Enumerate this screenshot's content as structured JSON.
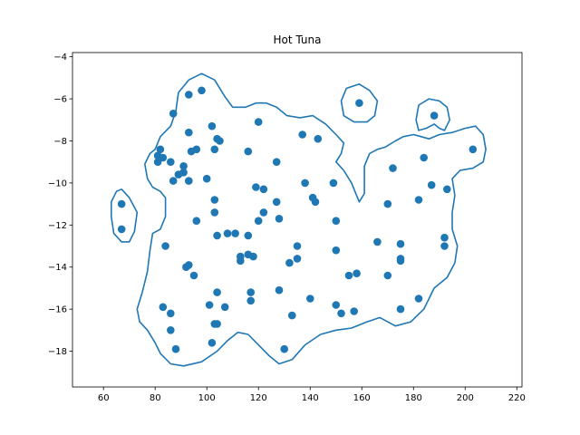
{
  "chart_data": {
    "type": "scatter",
    "title": "Hot Tuna",
    "xlabel": "",
    "ylabel": "",
    "xlim": [
      48,
      222
    ],
    "ylim": [
      -19.7,
      -3.8
    ],
    "grid": false,
    "x_ticks": [
      60,
      80,
      100,
      120,
      140,
      160,
      180,
      200,
      220
    ],
    "y_ticks": [
      -4,
      -6,
      -8,
      -10,
      -12,
      -14,
      -16,
      -18
    ],
    "x_tick_labels": [
      "60",
      "80",
      "100",
      "120",
      "140",
      "160",
      "180",
      "200",
      "220"
    ],
    "y_tick_labels": [
      "−4",
      "−6",
      "−8",
      "−10",
      "−12",
      "−14",
      "−16",
      "−18"
    ],
    "marker_color": "#1f77b4",
    "contour_color": "#1f77b4",
    "points": [
      [
        159,
        -6.2
      ],
      [
        98,
        -5.6
      ],
      [
        93,
        -5.8
      ],
      [
        87,
        -6.7
      ],
      [
        102,
        -7.3
      ],
      [
        120,
        -7.1
      ],
      [
        93,
        -7.6
      ],
      [
        104,
        -7.9
      ],
      [
        105,
        -8.0
      ],
      [
        137,
        -7.7
      ],
      [
        143,
        -7.9
      ],
      [
        82,
        -8.4
      ],
      [
        81,
        -8.7
      ],
      [
        83,
        -8.8
      ],
      [
        86,
        -9.0
      ],
      [
        81,
        -9.0
      ],
      [
        94,
        -8.5
      ],
      [
        96,
        -8.4
      ],
      [
        103,
        -8.4
      ],
      [
        116,
        -8.5
      ],
      [
        91,
        -9.2
      ],
      [
        127,
        -9.0
      ],
      [
        91,
        -9.5
      ],
      [
        89,
        -9.6
      ],
      [
        87,
        -9.9
      ],
      [
        93,
        -9.9
      ],
      [
        100,
        -9.8
      ],
      [
        119,
        -10.2
      ],
      [
        122,
        -10.3
      ],
      [
        138,
        -10.0
      ],
      [
        149,
        -10.0
      ],
      [
        103,
        -10.8
      ],
      [
        141,
        -10.7
      ],
      [
        142,
        -10.9
      ],
      [
        127,
        -10.9
      ],
      [
        103,
        -11.4
      ],
      [
        122,
        -11.4
      ],
      [
        120,
        -11.8
      ],
      [
        128,
        -11.7
      ],
      [
        96,
        -11.8
      ],
      [
        150,
        -11.8
      ],
      [
        104,
        -12.5
      ],
      [
        108,
        -12.4
      ],
      [
        111,
        -12.4
      ],
      [
        116,
        -12.5
      ],
      [
        84,
        -13.0
      ],
      [
        135,
        -13.0
      ],
      [
        150,
        -13.2
      ],
      [
        113,
        -13.5
      ],
      [
        113,
        -13.7
      ],
      [
        116,
        -13.4
      ],
      [
        118,
        -13.5
      ],
      [
        135,
        -13.6
      ],
      [
        93,
        -13.9
      ],
      [
        92,
        -14.0
      ],
      [
        132,
        -13.8
      ],
      [
        95,
        -14.4
      ],
      [
        155,
        -14.4
      ],
      [
        158,
        -14.3
      ],
      [
        104,
        -15.2
      ],
      [
        117,
        -15.2
      ],
      [
        128,
        -15.1
      ],
      [
        117,
        -15.6
      ],
      [
        140,
        -15.5
      ],
      [
        83,
        -15.9
      ],
      [
        101,
        -15.8
      ],
      [
        107,
        -15.9
      ],
      [
        150,
        -15.8
      ],
      [
        86,
        -16.2
      ],
      [
        133,
        -16.3
      ],
      [
        152,
        -16.2
      ],
      [
        157,
        -16.1
      ],
      [
        103,
        -16.7
      ],
      [
        104,
        -16.7
      ],
      [
        86,
        -17.0
      ],
      [
        102,
        -17.6
      ],
      [
        88,
        -17.9
      ],
      [
        130,
        -17.9
      ],
      [
        67,
        -11.0
      ],
      [
        67,
        -12.2
      ],
      [
        188,
        -6.8
      ],
      [
        184,
        -8.8
      ],
      [
        172,
        -9.3
      ],
      [
        187,
        -10.1
      ],
      [
        193,
        -10.3
      ],
      [
        182,
        -10.8
      ],
      [
        170,
        -11.0
      ],
      [
        166,
        -12.8
      ],
      [
        175,
        -12.9
      ],
      [
        192,
        -12.6
      ],
      [
        192,
        -13.0
      ],
      [
        175,
        -13.6
      ],
      [
        175,
        -13.7
      ],
      [
        170,
        -14.4
      ],
      [
        182,
        -15.5
      ],
      [
        175,
        -16.0
      ],
      [
        203,
        -8.4
      ]
    ],
    "contours": [
      [
        [
          80,
          -8.4
        ],
        [
          82,
          -7.8
        ],
        [
          86,
          -7.3
        ],
        [
          88,
          -6.6
        ],
        [
          89,
          -5.7
        ],
        [
          93,
          -5.1
        ],
        [
          98,
          -4.8
        ],
        [
          103,
          -5.1
        ],
        [
          107,
          -5.9
        ],
        [
          110,
          -6.4
        ],
        [
          115,
          -6.4
        ],
        [
          119,
          -6.2
        ],
        [
          123,
          -6.2
        ],
        [
          127,
          -6.4
        ],
        [
          131,
          -6.8
        ],
        [
          136,
          -6.9
        ],
        [
          141,
          -6.8
        ],
        [
          146,
          -7.2
        ],
        [
          150,
          -7.7
        ],
        [
          153,
          -8.1
        ],
        [
          152,
          -8.6
        ],
        [
          150,
          -9.0
        ],
        [
          153,
          -9.4
        ],
        [
          156,
          -10.0
        ],
        [
          159,
          -10.9
        ],
        [
          161,
          -10.5
        ],
        [
          161,
          -9.2
        ],
        [
          163,
          -8.6
        ],
        [
          166,
          -8.4
        ],
        [
          169,
          -8.3
        ],
        [
          173,
          -8.0
        ],
        [
          176,
          -7.8
        ],
        [
          180,
          -7.7
        ],
        [
          183,
          -7.8
        ],
        [
          186,
          -7.9
        ],
        [
          190,
          -7.7
        ],
        [
          195,
          -7.6
        ],
        [
          200,
          -7.4
        ],
        [
          204,
          -7.3
        ],
        [
          207,
          -7.7
        ],
        [
          208,
          -8.4
        ],
        [
          207,
          -9.0
        ],
        [
          203,
          -9.3
        ],
        [
          198,
          -9.4
        ],
        [
          195,
          -9.8
        ],
        [
          196,
          -10.6
        ],
        [
          195,
          -11.4
        ],
        [
          195,
          -12.2
        ],
        [
          197,
          -13.0
        ],
        [
          196,
          -13.8
        ],
        [
          193,
          -14.5
        ],
        [
          188,
          -15.0
        ],
        [
          184,
          -16.0
        ],
        [
          179,
          -16.6
        ],
        [
          173,
          -16.8
        ],
        [
          167,
          -16.4
        ],
        [
          162,
          -16.6
        ],
        [
          156,
          -16.9
        ],
        [
          150,
          -17.0
        ],
        [
          144,
          -17.2
        ],
        [
          138,
          -17.7
        ],
        [
          133,
          -18.4
        ],
        [
          128,
          -18.6
        ],
        [
          124,
          -18.2
        ],
        [
          120,
          -17.7
        ],
        [
          116,
          -17.2
        ],
        [
          112,
          -17.1
        ],
        [
          108,
          -17.5
        ],
        [
          104,
          -18.0
        ],
        [
          98,
          -18.5
        ],
        [
          91,
          -18.7
        ],
        [
          86,
          -18.6
        ],
        [
          82,
          -18.1
        ],
        [
          80,
          -17.6
        ],
        [
          77,
          -17.0
        ],
        [
          74,
          -16.6
        ],
        [
          73,
          -16.0
        ],
        [
          75,
          -15.2
        ],
        [
          77,
          -14.2
        ],
        [
          78,
          -13.2
        ],
        [
          79,
          -12.4
        ],
        [
          82,
          -12.2
        ],
        [
          84,
          -11.6
        ],
        [
          84,
          -10.7
        ],
        [
          82,
          -10.4
        ],
        [
          79,
          -10.2
        ],
        [
          77,
          -9.8
        ],
        [
          76,
          -9.1
        ],
        [
          78,
          -8.6
        ],
        [
          80,
          -8.4
        ]
      ],
      [
        [
          63,
          -10.9
        ],
        [
          65,
          -10.4
        ],
        [
          67,
          -10.3
        ],
        [
          70,
          -10.7
        ],
        [
          73,
          -11.4
        ],
        [
          72,
          -12.3
        ],
        [
          70,
          -12.8
        ],
        [
          67,
          -12.8
        ],
        [
          64,
          -12.4
        ],
        [
          63,
          -11.6
        ],
        [
          63,
          -10.9
        ]
      ],
      [
        [
          152,
          -6.1
        ],
        [
          154,
          -5.5
        ],
        [
          159,
          -5.3
        ],
        [
          163,
          -5.6
        ],
        [
          166,
          -6.1
        ],
        [
          165,
          -6.8
        ],
        [
          162,
          -7.1
        ],
        [
          157,
          -7.1
        ],
        [
          153,
          -6.8
        ],
        [
          152,
          -6.1
        ]
      ],
      [
        [
          181,
          -7.0
        ],
        [
          182,
          -6.3
        ],
        [
          186,
          -6.0
        ],
        [
          190,
          -6.1
        ],
        [
          193,
          -6.4
        ],
        [
          194,
          -7.0
        ],
        [
          192,
          -7.5
        ],
        [
          190,
          -7.4
        ],
        [
          188,
          -7.2
        ],
        [
          185,
          -7.4
        ],
        [
          182,
          -7.5
        ],
        [
          181,
          -7.0
        ]
      ]
    ]
  }
}
